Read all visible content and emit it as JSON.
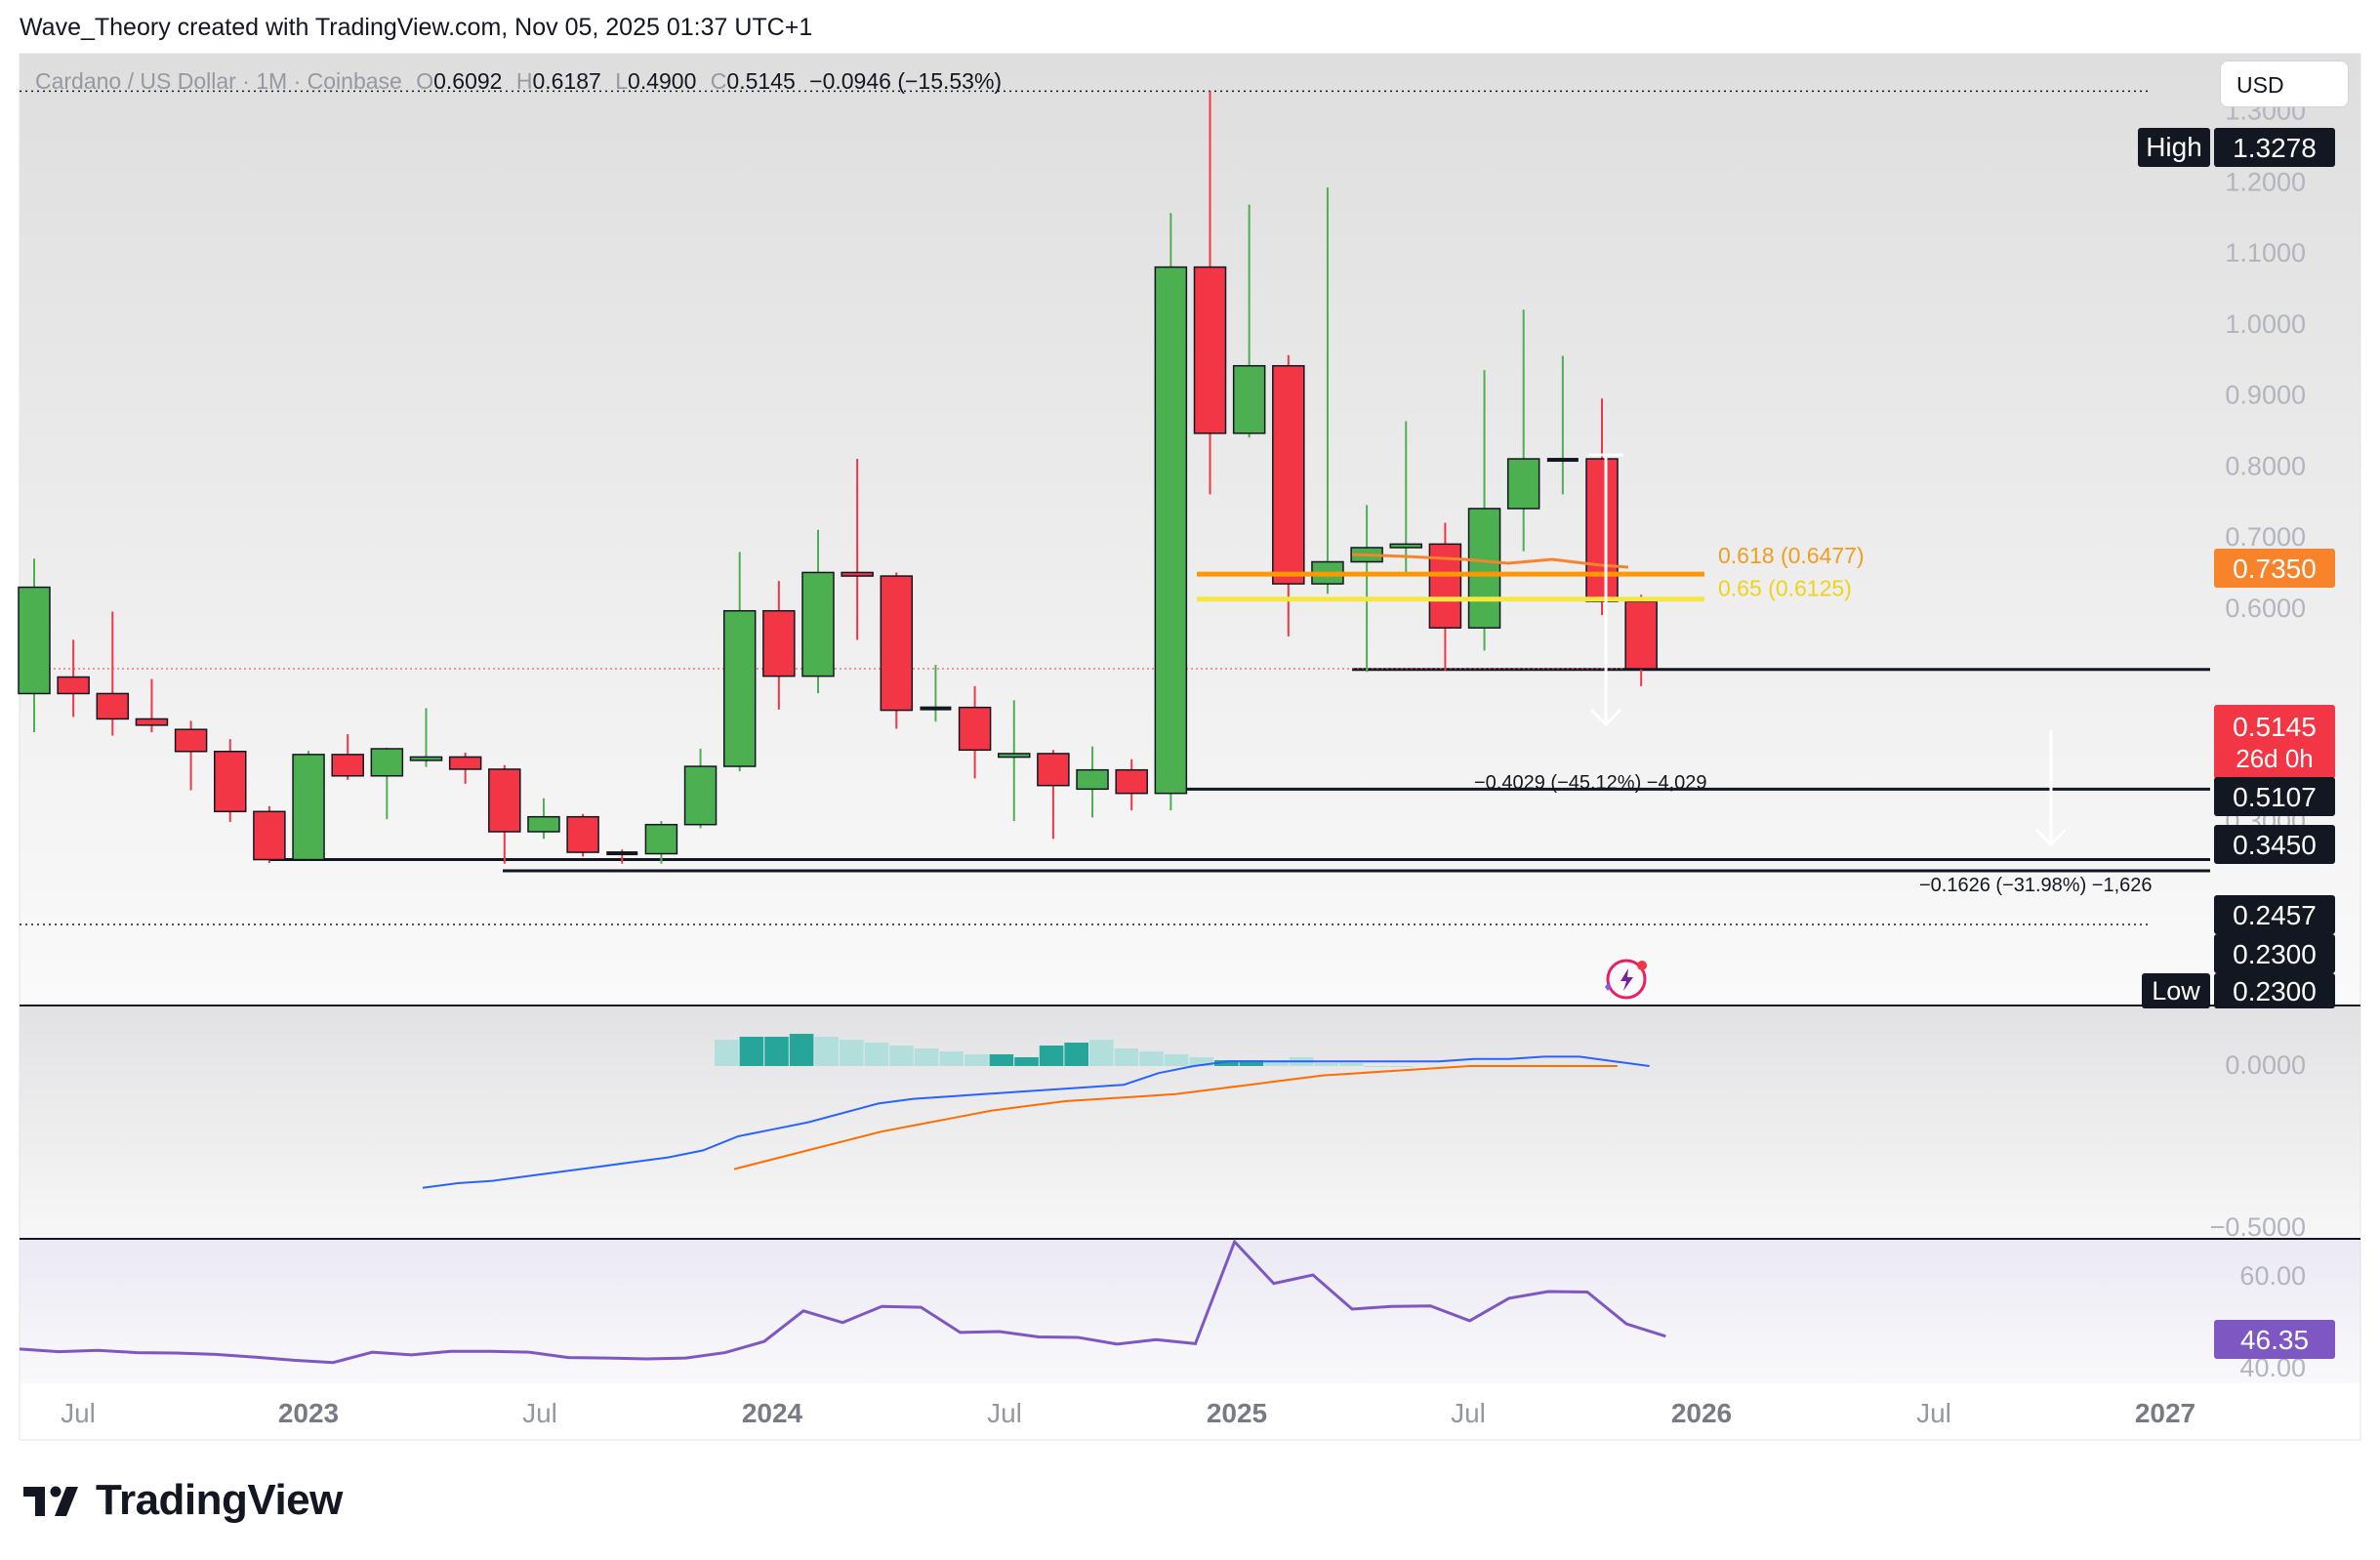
{
  "header": {
    "text": "Wave_Theory created with TradingView.com, Nov 05, 2025 01:37 UTC+1"
  },
  "symbol": {
    "name": "Cardano / US Dollar · 1M · Coinbase",
    "o_label": "O",
    "o": "0.6092",
    "h_label": "H",
    "h": "0.6187",
    "l_label": "L",
    "l": "0.4900",
    "c_label": "C",
    "c": "0.5145",
    "change": "−0.0946 (−15.53%)"
  },
  "currency_button": "USD",
  "colors": {
    "up": "#4caf50",
    "down": "#f23645",
    "fib618": "#ff9800",
    "fib65": "#f5e642",
    "ema": "#f7842b",
    "macd": "#2962ff",
    "signal": "#ff6d00",
    "rsi": "#7e57c2",
    "hist_strong": "#26a69a",
    "hist_weak": "#b2dfdb"
  },
  "chart_data": {
    "type": "candlestick",
    "y_scale": [
      0.23,
      1.3278
    ],
    "x_tick_labels": [
      "Jul",
      "2023",
      "Jul",
      "2024",
      "Jul",
      "2025",
      "Jul",
      "2026",
      "Jul",
      "2027"
    ],
    "y_tick_labels": [
      "1.3000",
      "1.2000",
      "1.1000",
      "1.0000",
      "0.9000",
      "0.8000",
      "0.7000",
      "0.6000",
      "0.3000"
    ],
    "candles": [
      {
        "t": "2022-06",
        "o": 0.4795,
        "h": 0.6695,
        "l": 0.4251,
        "c": 0.6292
      },
      {
        "t": "2022-07",
        "o": 0.5028,
        "h": 0.5553,
        "l": 0.4467,
        "c": 0.4795
      },
      {
        "t": "2022-08",
        "o": 0.4795,
        "h": 0.595,
        "l": 0.4201,
        "c": 0.4438
      },
      {
        "t": "2022-09",
        "o": 0.4438,
        "h": 0.5,
        "l": 0.425,
        "c": 0.435
      },
      {
        "t": "2022-10",
        "o": 0.429,
        "h": 0.4411,
        "l": 0.3434,
        "c": 0.398
      },
      {
        "t": "2022-11",
        "o": 0.398,
        "h": 0.4154,
        "l": 0.2987,
        "c": 0.3134
      },
      {
        "t": "2022-12",
        "o": 0.3134,
        "h": 0.3209,
        "l": 0.2408,
        "c": 0.2457
      },
      {
        "t": "2023-01",
        "o": 0.2457,
        "h": 0.3988,
        "l": 0.2447,
        "c": 0.3937
      },
      {
        "t": "2023-02",
        "o": 0.3937,
        "h": 0.4223,
        "l": 0.358,
        "c": 0.3636
      },
      {
        "t": "2023-03",
        "o": 0.3636,
        "h": 0.4034,
        "l": 0.3024,
        "c": 0.4018
      },
      {
        "t": "2023-04",
        "o": 0.3854,
        "h": 0.4589,
        "l": 0.3762,
        "c": 0.3902
      },
      {
        "t": "2023-05",
        "o": 0.3902,
        "h": 0.3963,
        "l": 0.3525,
        "c": 0.373
      },
      {
        "t": "2023-06",
        "o": 0.373,
        "h": 0.3788,
        "l": 0.24,
        "c": 0.285
      },
      {
        "t": "2023-07",
        "o": 0.285,
        "h": 0.332,
        "l": 0.275,
        "c": 0.306
      },
      {
        "t": "2023-08",
        "o": 0.306,
        "h": 0.31,
        "l": 0.25,
        "c": 0.256
      },
      {
        "t": "2023-09",
        "o": 0.256,
        "h": 0.26,
        "l": 0.24,
        "c": 0.254
      },
      {
        "t": "2023-10",
        "o": 0.254,
        "h": 0.3,
        "l": 0.24,
        "c": 0.295
      },
      {
        "t": "2023-11",
        "o": 0.295,
        "h": 0.402,
        "l": 0.29,
        "c": 0.377
      },
      {
        "t": "2023-12",
        "o": 0.377,
        "h": 0.679,
        "l": 0.37,
        "c": 0.596
      },
      {
        "t": "2024-01",
        "o": 0.596,
        "h": 0.638,
        "l": 0.457,
        "c": 0.504
      },
      {
        "t": "2024-02",
        "o": 0.504,
        "h": 0.71,
        "l": 0.48,
        "c": 0.65
      },
      {
        "t": "2024-03",
        "o": 0.65,
        "h": 0.81,
        "l": 0.555,
        "c": 0.645
      },
      {
        "t": "2024-04",
        "o": 0.645,
        "h": 0.65,
        "l": 0.43,
        "c": 0.456
      },
      {
        "t": "2024-05",
        "o": 0.456,
        "h": 0.52,
        "l": 0.44,
        "c": 0.46
      },
      {
        "t": "2024-06",
        "o": 0.46,
        "h": 0.49,
        "l": 0.36,
        "c": 0.4
      },
      {
        "t": "2024-07",
        "o": 0.39,
        "h": 0.47,
        "l": 0.3,
        "c": 0.395
      },
      {
        "t": "2024-08",
        "o": 0.395,
        "h": 0.4,
        "l": 0.275,
        "c": 0.35
      },
      {
        "t": "2024-09",
        "o": 0.345,
        "h": 0.405,
        "l": 0.305,
        "c": 0.372
      },
      {
        "t": "2024-10",
        "o": 0.372,
        "h": 0.387,
        "l": 0.315,
        "c": 0.339
      },
      {
        "t": "2024-11",
        "o": 0.339,
        "h": 1.156,
        "l": 0.315,
        "c": 1.08
      },
      {
        "t": "2024-12",
        "o": 1.08,
        "h": 1.3278,
        "l": 0.76,
        "c": 0.846
      },
      {
        "t": "2025-01",
        "o": 0.846,
        "h": 1.168,
        "l": 0.84,
        "c": 0.941
      },
      {
        "t": "2025-02",
        "o": 0.941,
        "h": 0.956,
        "l": 0.56,
        "c": 0.634
      },
      {
        "t": "2025-03",
        "o": 0.634,
        "h": 1.192,
        "l": 0.62,
        "c": 0.665
      },
      {
        "t": "2025-04",
        "o": 0.665,
        "h": 0.745,
        "l": 0.51,
        "c": 0.685
      },
      {
        "t": "2025-05",
        "o": 0.685,
        "h": 0.863,
        "l": 0.65,
        "c": 0.69
      },
      {
        "t": "2025-06",
        "o": 0.69,
        "h": 0.72,
        "l": 0.512,
        "c": 0.572
      },
      {
        "t": "2025-07",
        "o": 0.572,
        "h": 0.935,
        "l": 0.54,
        "c": 0.74
      },
      {
        "t": "2025-08",
        "o": 0.74,
        "h": 1.02,
        "l": 0.68,
        "c": 0.81
      },
      {
        "t": "2025-09",
        "o": 0.81,
        "h": 0.955,
        "l": 0.76,
        "c": 0.81
      },
      {
        "t": "2025-10",
        "o": 0.81,
        "h": 0.895,
        "l": 0.59,
        "c": 0.6092
      },
      {
        "t": "2025-11",
        "o": 0.6092,
        "h": 0.6187,
        "l": 0.49,
        "c": 0.5145
      }
    ],
    "fib_levels": [
      {
        "label": "0.618 (0.6477)",
        "value": 0.6477
      },
      {
        "label": "0.65 (0.6125)",
        "value": 0.6125
      }
    ],
    "ema_value_label": "0.7350",
    "horizontal_levels": [
      0.5107,
      0.345,
      0.2457,
      0.23
    ],
    "price_tags": {
      "high_label": "High",
      "high": "1.3278",
      "current": "0.5145",
      "countdown": "26d 0h",
      "level1": "0.5107",
      "level2": "0.3450",
      "level3": "0.2457",
      "level4": "0.2300",
      "low_label": "Low",
      "low": "0.2300"
    },
    "measures": [
      {
        "text": "−0.4029 (−45.12%) −4,029"
      },
      {
        "text": "−0.1626 (−31.98%) −1,626"
      }
    ],
    "macd": {
      "tick_labels": [
        "0.0000",
        "−0.5000"
      ],
      "macd_line": [
        -0.52,
        -0.5,
        -0.49,
        -0.47,
        -0.45,
        -0.43,
        -0.41,
        -0.39,
        -0.36,
        -0.3,
        -0.27,
        -0.24,
        -0.2,
        -0.16,
        -0.14,
        -0.13,
        -0.12,
        -0.11,
        -0.1,
        -0.09,
        -0.08,
        -0.03,
        0.0,
        0.02,
        0.02,
        0.02,
        0.02,
        0.02,
        0.02,
        0.02,
        0.03,
        0.03,
        0.04,
        0.04,
        0.02,
        0.0
      ],
      "signal_line": [
        -0.44,
        -0.4,
        -0.36,
        -0.32,
        -0.28,
        -0.25,
        -0.22,
        -0.19,
        -0.17,
        -0.15,
        -0.14,
        -0.13,
        -0.12,
        -0.1,
        -0.08,
        -0.06,
        -0.04,
        -0.03,
        -0.02,
        -0.01,
        0.0,
        0.0,
        0.0,
        0.0,
        0.0
      ],
      "histogram": [
        0.09,
        0.1,
        0.1,
        0.11,
        0.1,
        0.09,
        0.08,
        0.07,
        0.06,
        0.05,
        0.04,
        0.04,
        0.03,
        0.07,
        0.08,
        0.09,
        0.06,
        0.05,
        0.04,
        0.03,
        0.02,
        0.02,
        0.02,
        0.03,
        0.01,
        0.01,
        0.0,
        0.0
      ]
    },
    "rsi": {
      "tick_labels": [
        "60.00",
        "40.00"
      ],
      "current_label": "46.35",
      "values": [
        43.5,
        42.9,
        43.2,
        42.7,
        42.6,
        42.3,
        41.7,
        41.0,
        40.5,
        42.8,
        42.2,
        43.0,
        43.0,
        42.8,
        41.6,
        41.5,
        41.3,
        41.5,
        42.7,
        45.2,
        52.0,
        49.4,
        53.0,
        52.8,
        47.2,
        47.4,
        46.2,
        46.1,
        44.6,
        45.6,
        44.7,
        67.4,
        58.1,
        60.0,
        52.4,
        53.0,
        53.1,
        49.8,
        54.8,
        56.3,
        56.2,
        49.1,
        46.35
      ]
    }
  },
  "footer": {
    "brand": "TradingView"
  }
}
